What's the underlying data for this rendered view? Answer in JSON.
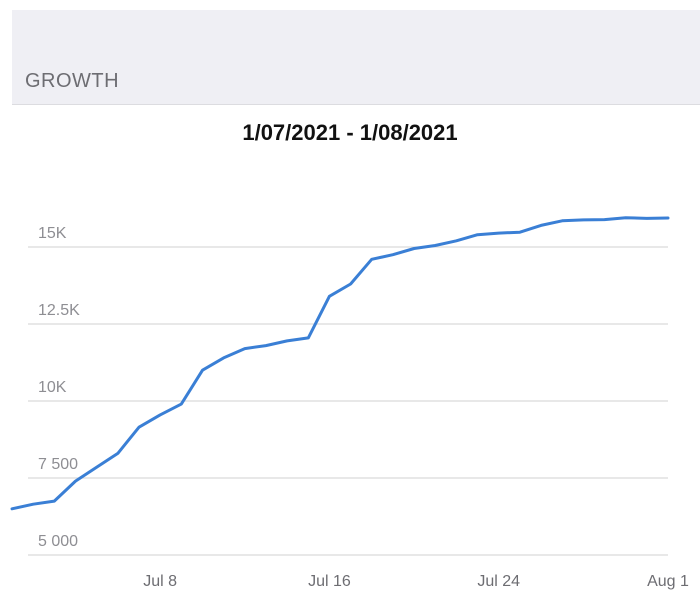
{
  "section": {
    "title": "GROWTH"
  },
  "chart_data": {
    "type": "line",
    "title": "1/07/2021 - 1/08/2021",
    "xlabel": "",
    "ylabel": "",
    "ylim": [
      4500,
      16200
    ],
    "grid": true,
    "y_ticks": [
      {
        "value": 5000,
        "label": "5 000"
      },
      {
        "value": 7500,
        "label": "7 500"
      },
      {
        "value": 10000,
        "label": "10K"
      },
      {
        "value": 12500,
        "label": "12.5K"
      },
      {
        "value": 15000,
        "label": "15K"
      }
    ],
    "x_ticks": [
      {
        "value": "2021-07-08",
        "label": "Jul 8"
      },
      {
        "value": "2021-07-16",
        "label": "Jul 16"
      },
      {
        "value": "2021-07-24",
        "label": "Jul 24"
      },
      {
        "value": "2021-08-01",
        "label": "Aug 1"
      }
    ],
    "xlim": [
      "2021-07-01",
      "2021-08-01"
    ],
    "series": [
      {
        "color": "#3a7fd5",
        "points": [
          {
            "x": "2021-07-01",
            "y": 6500
          },
          {
            "x": "2021-07-02",
            "y": 6650
          },
          {
            "x": "2021-07-03",
            "y": 6750
          },
          {
            "x": "2021-07-04",
            "y": 7400
          },
          {
            "x": "2021-07-05",
            "y": 7850
          },
          {
            "x": "2021-07-06",
            "y": 8300
          },
          {
            "x": "2021-07-07",
            "y": 9150
          },
          {
            "x": "2021-07-08",
            "y": 9550
          },
          {
            "x": "2021-07-09",
            "y": 9900
          },
          {
            "x": "2021-07-10",
            "y": 11000
          },
          {
            "x": "2021-07-11",
            "y": 11400
          },
          {
            "x": "2021-07-12",
            "y": 11700
          },
          {
            "x": "2021-07-13",
            "y": 11800
          },
          {
            "x": "2021-07-14",
            "y": 11950
          },
          {
            "x": "2021-07-15",
            "y": 12050
          },
          {
            "x": "2021-07-16",
            "y": 13400
          },
          {
            "x": "2021-07-17",
            "y": 13800
          },
          {
            "x": "2021-07-18",
            "y": 14600
          },
          {
            "x": "2021-07-19",
            "y": 14750
          },
          {
            "x": "2021-07-20",
            "y": 14950
          },
          {
            "x": "2021-07-21",
            "y": 15050
          },
          {
            "x": "2021-07-22",
            "y": 15200
          },
          {
            "x": "2021-07-23",
            "y": 15400
          },
          {
            "x": "2021-07-24",
            "y": 15450
          },
          {
            "x": "2021-07-25",
            "y": 15480
          },
          {
            "x": "2021-07-26",
            "y": 15700
          },
          {
            "x": "2021-07-27",
            "y": 15850
          },
          {
            "x": "2021-07-28",
            "y": 15880
          },
          {
            "x": "2021-07-29",
            "y": 15890
          },
          {
            "x": "2021-07-30",
            "y": 15950
          },
          {
            "x": "2021-07-31",
            "y": 15930
          },
          {
            "x": "2021-08-01",
            "y": 15940
          }
        ]
      }
    ]
  }
}
